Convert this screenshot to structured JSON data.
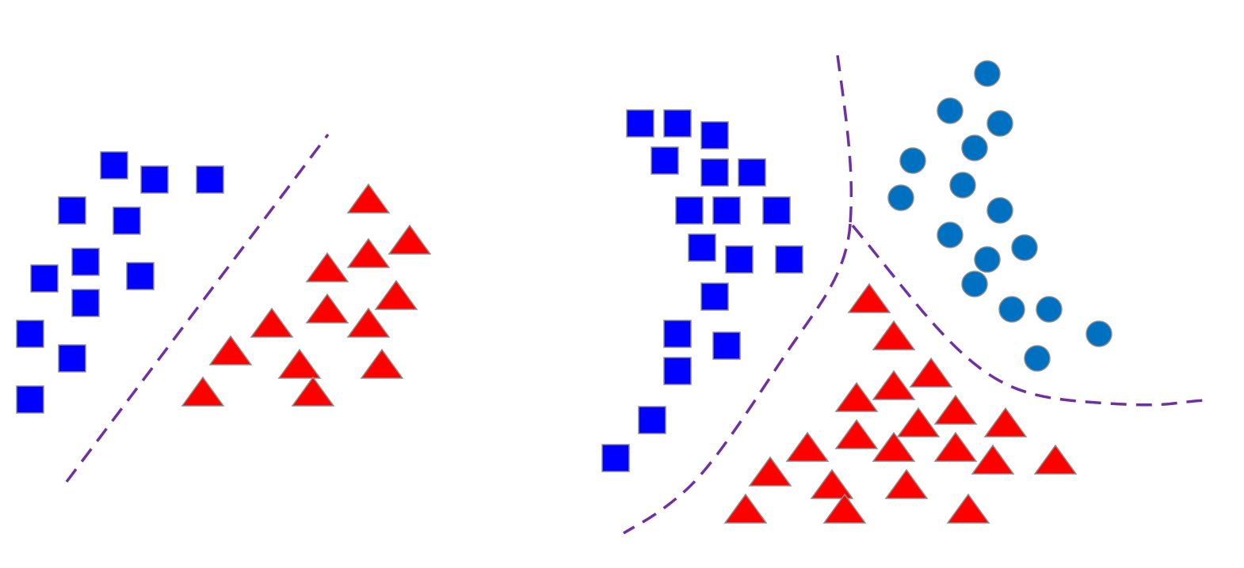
{
  "colors": {
    "square_fill": "#0000ff",
    "triangle_fill": "#ff0000",
    "circle_fill": "#0070c0",
    "boundary": "#7030a0",
    "marker_outline": "#8c8c8c"
  },
  "icons": {
    "class_a": "blue-square",
    "class_b": "red-triangle",
    "class_c": "blue-circle",
    "boundary": "dashed-purple-line"
  },
  "panels": [
    {
      "name": "linear-separation",
      "classes": [
        "square",
        "triangle"
      ],
      "boundary": "straight-line"
    },
    {
      "name": "nonlinear-separation",
      "classes": [
        "square",
        "triangle",
        "circle"
      ],
      "boundary": "curved-lines"
    }
  ]
}
